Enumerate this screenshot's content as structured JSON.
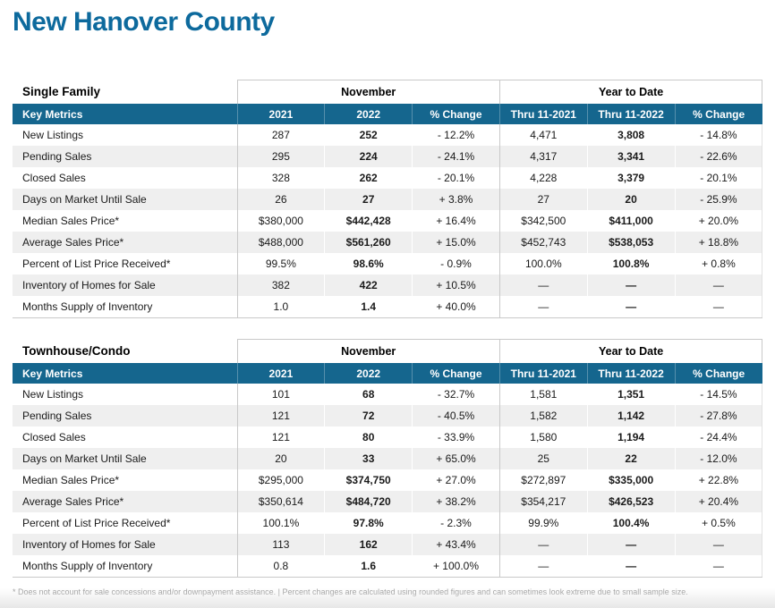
{
  "page_title": "New Hanover County",
  "colors": {
    "title_blue": "#0d6a9d",
    "header_bar_blue": "#15668e",
    "row_stripe_gray": "#efefef"
  },
  "tables": [
    {
      "section_label": "Single Family",
      "group_headers": {
        "left": "November",
        "right": "Year to Date"
      },
      "columns": [
        "Key Metrics",
        "2021",
        "2022",
        "% Change",
        "Thru 11-2021",
        "Thru 11-2022",
        "% Change"
      ],
      "rows": [
        [
          "New Listings",
          "287",
          "252",
          "- 12.2%",
          "4,471",
          "3,808",
          "- 14.8%"
        ],
        [
          "Pending Sales",
          "295",
          "224",
          "- 24.1%",
          "4,317",
          "3,341",
          "- 22.6%"
        ],
        [
          "Closed Sales",
          "328",
          "262",
          "- 20.1%",
          "4,228",
          "3,379",
          "- 20.1%"
        ],
        [
          "Days on Market Until Sale",
          "26",
          "27",
          "+ 3.8%",
          "27",
          "20",
          "- 25.9%"
        ],
        [
          "Median Sales Price*",
          "$380,000",
          "$442,428",
          "+ 16.4%",
          "$342,500",
          "$411,000",
          "+ 20.0%"
        ],
        [
          "Average Sales Price*",
          "$488,000",
          "$561,260",
          "+ 15.0%",
          "$452,743",
          "$538,053",
          "+ 18.8%"
        ],
        [
          "Percent of List Price Received*",
          "99.5%",
          "98.6%",
          "- 0.9%",
          "100.0%",
          "100.8%",
          "+ 0.8%"
        ],
        [
          "Inventory of Homes for Sale",
          "382",
          "422",
          "+ 10.5%",
          "—",
          "—",
          "—"
        ],
        [
          "Months Supply of Inventory",
          "1.0",
          "1.4",
          "+ 40.0%",
          "—",
          "—",
          "—"
        ]
      ]
    },
    {
      "section_label": "Townhouse/Condo",
      "group_headers": {
        "left": "November",
        "right": "Year to Date"
      },
      "columns": [
        "Key Metrics",
        "2021",
        "2022",
        "% Change",
        "Thru 11-2021",
        "Thru 11-2022",
        "% Change"
      ],
      "rows": [
        [
          "New Listings",
          "101",
          "68",
          "- 32.7%",
          "1,581",
          "1,351",
          "- 14.5%"
        ],
        [
          "Pending Sales",
          "121",
          "72",
          "- 40.5%",
          "1,582",
          "1,142",
          "- 27.8%"
        ],
        [
          "Closed Sales",
          "121",
          "80",
          "- 33.9%",
          "1,580",
          "1,194",
          "- 24.4%"
        ],
        [
          "Days on Market Until Sale",
          "20",
          "33",
          "+ 65.0%",
          "25",
          "22",
          "- 12.0%"
        ],
        [
          "Median Sales Price*",
          "$295,000",
          "$374,750",
          "+ 27.0%",
          "$272,897",
          "$335,000",
          "+ 22.8%"
        ],
        [
          "Average Sales Price*",
          "$350,614",
          "$484,720",
          "+ 38.2%",
          "$354,217",
          "$426,523",
          "+ 20.4%"
        ],
        [
          "Percent of List Price Received*",
          "100.1%",
          "97.8%",
          "- 2.3%",
          "99.9%",
          "100.4%",
          "+ 0.5%"
        ],
        [
          "Inventory of Homes for Sale",
          "113",
          "162",
          "+ 43.4%",
          "—",
          "—",
          "—"
        ],
        [
          "Months Supply of Inventory",
          "0.8",
          "1.6",
          "+ 100.0%",
          "—",
          "—",
          "—"
        ]
      ]
    }
  ],
  "footnote": "* Does not account for sale concessions and/or downpayment assistance. | Percent changes are calculated using rounded figures and can sometimes look extreme due to small sample size."
}
